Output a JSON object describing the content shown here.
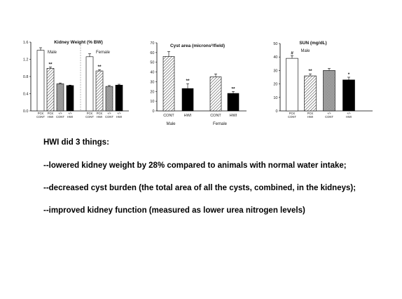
{
  "chart_data": [
    {
      "type": "bar",
      "title": "Kidney Weight (% BW)",
      "panels": [
        "Male",
        "Female"
      ],
      "categories": [
        "PCK CONT",
        "PCK HWI",
        "+/+ CONT",
        "+/+ HWI",
        "PCK CONT",
        "PCK HWI",
        "+/+ CONT",
        "+/+ HWI"
      ],
      "values": [
        1.41,
        0.99,
        0.63,
        0.59,
        1.26,
        0.93,
        0.57,
        0.6
      ],
      "errors": [
        0.06,
        0.03,
        0.02,
        0.01,
        0.07,
        0.03,
        0.02,
        0.02
      ],
      "fills": [
        "open",
        "hatch",
        "cross",
        "solid",
        "open",
        "hatch",
        "cross",
        "solid"
      ],
      "significance": [
        "",
        "**",
        "",
        "",
        "",
        "**",
        "",
        ""
      ],
      "ylim": [
        0,
        1.6
      ],
      "yticks": [
        "0.0",
        "0.4",
        "0.8",
        "1.2",
        "1.6"
      ],
      "xlabel": "",
      "ylabel": ""
    },
    {
      "type": "bar",
      "title": "Cyst area (microns²/field)",
      "categories": [
        "CONT",
        "HWI",
        "CONT",
        "HWI"
      ],
      "groups": [
        "Male",
        "Female"
      ],
      "values": [
        56,
        23,
        35,
        18
      ],
      "errors": [
        5,
        5,
        3,
        2
      ],
      "fills": [
        "hatch",
        "solid",
        "hatch",
        "solid"
      ],
      "significance": [
        "",
        "**",
        "",
        "**"
      ],
      "ylim": [
        0,
        70
      ],
      "yticks": [
        "0",
        "10",
        "20",
        "30",
        "40",
        "50",
        "60",
        "70"
      ],
      "xlabel": "",
      "ylabel": ""
    },
    {
      "type": "bar",
      "title": "SUN (mg/dL)",
      "panels": [
        "Male"
      ],
      "categories": [
        "PCK CONT",
        "PCK HWI",
        "+/+ CONT",
        "+/+ HWI"
      ],
      "values": [
        39,
        26,
        30,
        23
      ],
      "errors": [
        2,
        1.5,
        1.5,
        2
      ],
      "fills": [
        "open",
        "hatch",
        "cross",
        "solid"
      ],
      "significance": [
        "#",
        "**",
        "",
        "*"
      ],
      "ylim": [
        0,
        50
      ],
      "yticks": [
        "0",
        "10",
        "20",
        "30",
        "40",
        "50"
      ],
      "xlabel": "",
      "ylabel": ""
    }
  ],
  "text": {
    "heading": "HWI did 3 things:",
    "point1": "--lowered kidney weight by 28% compared to animals with normal water intake;",
    "point2": "--decreased cyst burden (the total area of all the cysts, combined, in the kidneys);",
    "point3": "--improved kidney function (measured as lower urea nitrogen levels)"
  }
}
